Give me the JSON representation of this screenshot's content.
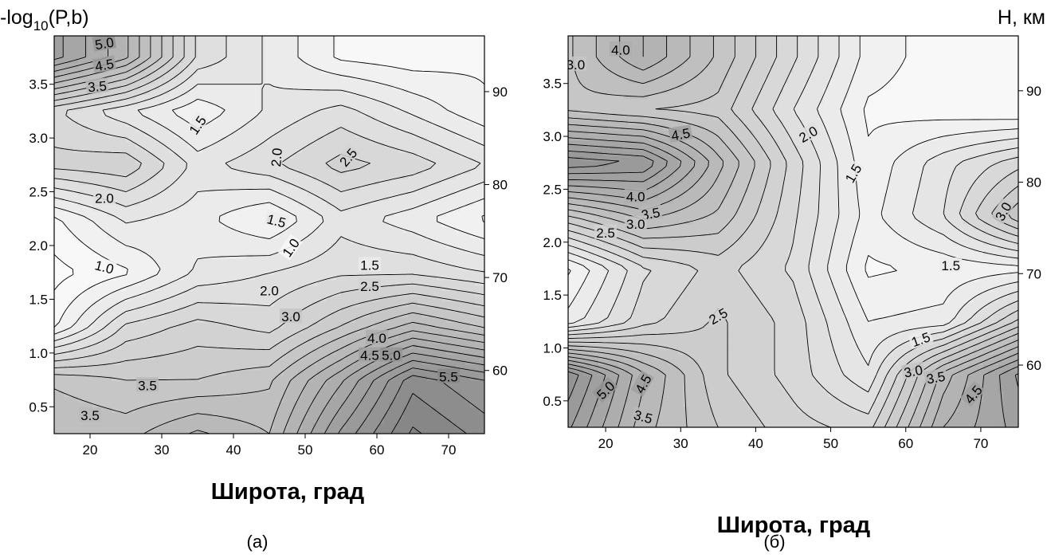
{
  "chart_data": [
    {
      "type": "heatmap",
      "panel_label": "(a)",
      "xlabel": "Широта, град",
      "ylabel_left": "-log10(P,b)",
      "ylabel_right": "",
      "xlim": [
        15,
        75
      ],
      "ylim_left": [
        0.25,
        3.95
      ],
      "ylim_right": [
        53.2,
        96.0
      ],
      "xticks": [
        20,
        30,
        40,
        50,
        60,
        70
      ],
      "yticks_left": [
        0.5,
        1.0,
        1.5,
        2.0,
        2.5,
        3.0,
        3.5
      ],
      "yticks_right": [
        60,
        70,
        80,
        90
      ],
      "x": [
        15,
        25,
        35,
        45,
        55,
        65,
        75
      ],
      "y": [
        0.25,
        0.75,
        1.25,
        1.75,
        2.25,
        2.75,
        3.25,
        3.75
      ],
      "z": [
        [
          3.5,
          3.4,
          3.8,
          3.5,
          4.8,
          5.8,
          5.4
        ],
        [
          3.2,
          3.0,
          3.0,
          3.2,
          4.2,
          5.4,
          5.0
        ],
        [
          1.2,
          2.3,
          2.6,
          2.4,
          3.0,
          3.6,
          3.2
        ],
        [
          0.9,
          1.2,
          1.8,
          2.0,
          2.2,
          2.2,
          2.0
        ],
        [
          1.2,
          1.8,
          1.6,
          1.2,
          1.9,
          1.6,
          1.2
        ],
        [
          2.6,
          2.7,
          1.9,
          2.2,
          2.6,
          2.4,
          2.0
        ],
        [
          2.3,
          1.8,
          1.3,
          1.8,
          2.1,
          1.7,
          1.3
        ],
        [
          4.6,
          3.8,
          2.2,
          1.7,
          1.2,
          1.1,
          1.2
        ]
      ],
      "contour_levels": [
        1.0,
        1.25,
        1.5,
        1.75,
        2.0,
        2.25,
        2.5,
        2.75,
        3.0,
        3.25,
        3.5,
        3.75,
        4.0,
        4.25,
        4.5,
        4.75,
        5.0,
        5.25,
        5.5,
        5.75,
        6.0
      ],
      "contour_labels": [
        {
          "text": "5.0",
          "x": 22,
          "y": 3.88,
          "rot": -10
        },
        {
          "text": "4.5",
          "x": 22,
          "y": 3.68,
          "rot": -10
        },
        {
          "text": "3.5",
          "x": 21,
          "y": 3.48,
          "rot": -5
        },
        {
          "text": "1.5",
          "x": 35,
          "y": 3.12,
          "rot": -55
        },
        {
          "text": "2.0",
          "x": 46,
          "y": 2.82,
          "rot": -85
        },
        {
          "text": "2.5",
          "x": 56,
          "y": 2.82,
          "rot": -50
        },
        {
          "text": "2.0",
          "x": 22,
          "y": 2.44,
          "rot": 0
        },
        {
          "text": "1.5",
          "x": 46,
          "y": 2.23,
          "rot": 15
        },
        {
          "text": "1.0",
          "x": 48,
          "y": 1.98,
          "rot": -55
        },
        {
          "text": "1.0",
          "x": 22,
          "y": 1.8,
          "rot": 15
        },
        {
          "text": "1.5",
          "x": 59,
          "y": 1.82,
          "rot": 0
        },
        {
          "text": "2.5",
          "x": 59,
          "y": 1.62,
          "rot": 0
        },
        {
          "text": "2.0",
          "x": 45,
          "y": 1.58,
          "rot": 0
        },
        {
          "text": "3.0",
          "x": 48,
          "y": 1.34,
          "rot": 0
        },
        {
          "text": "4.0",
          "x": 60,
          "y": 1.14,
          "rot": 0
        },
        {
          "text": "4.5",
          "x": 59,
          "y": 0.98,
          "rot": 0
        },
        {
          "text": "5.0",
          "x": 62,
          "y": 0.98,
          "rot": 0
        },
        {
          "text": "5.5",
          "x": 70,
          "y": 0.78,
          "rot": 0
        },
        {
          "text": "3.5",
          "x": 28,
          "y": 0.7,
          "rot": 0
        },
        {
          "text": "3.5",
          "x": 20,
          "y": 0.42,
          "rot": 0
        }
      ]
    },
    {
      "type": "heatmap",
      "panel_label": "(б)",
      "xlabel": "Широта, град",
      "ylabel_left": "",
      "ylabel_right": "Н, км",
      "xlim": [
        15,
        75
      ],
      "ylim_left": [
        0.25,
        3.95
      ],
      "ylim_right": [
        53.2,
        96.0
      ],
      "xticks": [
        20,
        30,
        40,
        50,
        60,
        70
      ],
      "yticks_left": [
        0.5,
        1.0,
        1.5,
        2.0,
        2.5,
        3.0,
        3.5
      ],
      "yticks_right": [
        60,
        70,
        80,
        90
      ],
      "x": [
        15,
        25,
        35,
        45,
        55,
        65,
        75
      ],
      "y": [
        0.25,
        0.75,
        1.25,
        1.75,
        2.25,
        2.75,
        3.25,
        3.75
      ],
      "z": [
        [
          4.8,
          3.6,
          3.0,
          2.6,
          2.4,
          4.0,
          4.6
        ],
        [
          5.2,
          3.8,
          2.8,
          2.4,
          1.8,
          3.6,
          4.8
        ],
        [
          1.6,
          2.4,
          2.8,
          2.4,
          1.5,
          1.6,
          2.8
        ],
        [
          1.2,
          2.2,
          2.6,
          2.2,
          1.2,
          1.3,
          1.4
        ],
        [
          3.0,
          3.6,
          3.2,
          2.3,
          1.4,
          2.0,
          3.2
        ],
        [
          5.2,
          5.0,
          3.6,
          2.4,
          1.3,
          1.9,
          2.4
        ],
        [
          3.2,
          3.0,
          2.9,
          2.0,
          1.2,
          1.1,
          1.0
        ],
        [
          3.2,
          4.0,
          3.2,
          2.3,
          1.4,
          1.1,
          1.0
        ]
      ],
      "contour_levels": [
        1.0,
        1.25,
        1.5,
        1.75,
        2.0,
        2.25,
        2.5,
        2.75,
        3.0,
        3.25,
        3.5,
        3.75,
        4.0,
        4.25,
        4.5,
        4.75,
        5.0,
        5.25,
        5.5,
        5.75,
        6.0
      ],
      "contour_labels": [
        {
          "text": "4.0",
          "x": 22,
          "y": 3.82,
          "rot": 0
        },
        {
          "text": "3.0",
          "x": 16,
          "y": 3.68,
          "rot": 0
        },
        {
          "text": "4.5",
          "x": 30,
          "y": 3.02,
          "rot": -10
        },
        {
          "text": "2.0",
          "x": 47,
          "y": 3.02,
          "rot": -30
        },
        {
          "text": "1.5",
          "x": 53,
          "y": 2.65,
          "rot": -60
        },
        {
          "text": "3.0",
          "x": 73,
          "y": 2.29,
          "rot": -60
        },
        {
          "text": "4.0",
          "x": 24,
          "y": 2.43,
          "rot": 0
        },
        {
          "text": "3.5",
          "x": 26,
          "y": 2.27,
          "rot": -10
        },
        {
          "text": "3.0",
          "x": 24,
          "y": 2.17,
          "rot": 0
        },
        {
          "text": "2.5",
          "x": 20,
          "y": 2.09,
          "rot": 0
        },
        {
          "text": "1.5",
          "x": 66,
          "y": 1.78,
          "rot": 0
        },
        {
          "text": "2.5",
          "x": 35,
          "y": 1.3,
          "rot": -30
        },
        {
          "text": "1.5",
          "x": 62,
          "y": 1.08,
          "rot": -20
        },
        {
          "text": "3.0",
          "x": 61,
          "y": 0.78,
          "rot": -10
        },
        {
          "text": "3.5",
          "x": 64,
          "y": 0.72,
          "rot": -10
        },
        {
          "text": "4.5",
          "x": 69,
          "y": 0.56,
          "rot": -50
        },
        {
          "text": "5.0",
          "x": 20,
          "y": 0.6,
          "rot": -45
        },
        {
          "text": "4.5",
          "x": 25,
          "y": 0.66,
          "rot": -60
        },
        {
          "text": "3.5",
          "x": 25,
          "y": 0.35,
          "rot": 15
        }
      ]
    }
  ]
}
